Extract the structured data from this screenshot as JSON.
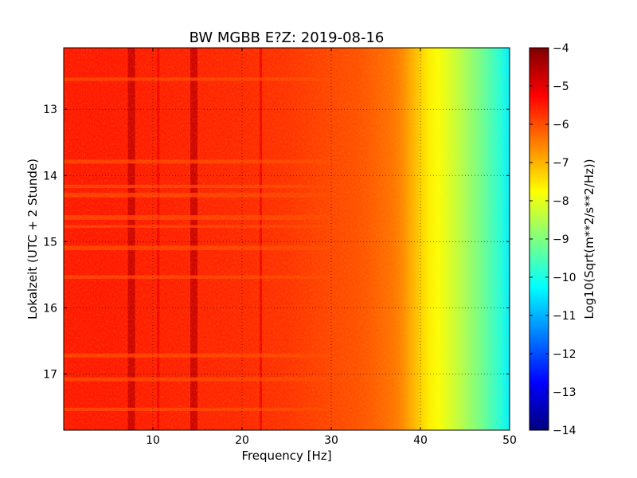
{
  "chart_data": {
    "type": "heatmap",
    "title": "BW MGBB E?Z: 2019-08-16",
    "xlabel": "Frequency [Hz]",
    "ylabel": "Lokalzeit (UTC + 2 Stunde)",
    "colorbar_label": "Log10(Sqrt(m**2/s**2/Hz))",
    "xlim": [
      0,
      50
    ],
    "ylim": [
      12.07,
      17.85
    ],
    "y_inverted": true,
    "x_ticks": [
      10,
      20,
      30,
      40,
      50
    ],
    "x_tick_labels": [
      "10",
      "20",
      "30",
      "40",
      "50"
    ],
    "y_ticks": [
      13,
      14,
      15,
      16,
      17
    ],
    "y_tick_labels": [
      "13",
      "14",
      "15",
      "16",
      "17"
    ],
    "clim": [
      -14,
      -4
    ],
    "colorbar_ticks": [
      -4,
      -5,
      -6,
      -7,
      -8,
      -9,
      -10,
      -11,
      -12,
      -13,
      -14
    ],
    "colorbar_tick_labels": [
      "−4",
      "−5",
      "−6",
      "−7",
      "−8",
      "−9",
      "−10",
      "−11",
      "−12",
      "−13",
      "−14"
    ],
    "colormap": "jet",
    "grid": true,
    "spectrum_profile": {
      "frequency_hz": [
        0,
        5,
        10,
        15,
        20,
        25,
        30,
        33,
        35,
        37,
        38,
        39,
        40,
        41,
        42,
        43,
        44,
        45,
        46,
        47,
        48,
        49,
        50
      ],
      "log10_amplitude": [
        -5.5,
        -5.5,
        -5.55,
        -5.6,
        -5.65,
        -5.75,
        -5.95,
        -6.05,
        -6.2,
        -6.4,
        -6.6,
        -6.95,
        -7.3,
        -7.6,
        -7.8,
        -8.05,
        -8.3,
        -8.6,
        -8.9,
        -9.2,
        -9.55,
        -9.9,
        -10.4
      ]
    },
    "spectral_lines": [
      {
        "frequency_hz": 7.6,
        "log10_amplitude": -4.7
      },
      {
        "frequency_hz": 14.6,
        "log10_amplitude": -4.7
      },
      {
        "frequency_hz": 10.6,
        "log10_amplitude": -5.1
      },
      {
        "frequency_hz": 22.1,
        "log10_amplitude": -5.1
      }
    ],
    "quiet_periods_hours": [
      [
        12.52,
        12.57
      ],
      [
        13.76,
        13.82
      ],
      [
        14.14,
        14.19
      ],
      [
        14.26,
        14.33
      ],
      [
        14.6,
        14.67
      ],
      [
        14.75,
        14.79
      ],
      [
        15.06,
        15.13
      ],
      [
        15.51,
        15.56
      ],
      [
        16.69,
        16.75
      ],
      [
        17.05,
        17.11
      ],
      [
        17.51,
        17.56
      ]
    ]
  }
}
